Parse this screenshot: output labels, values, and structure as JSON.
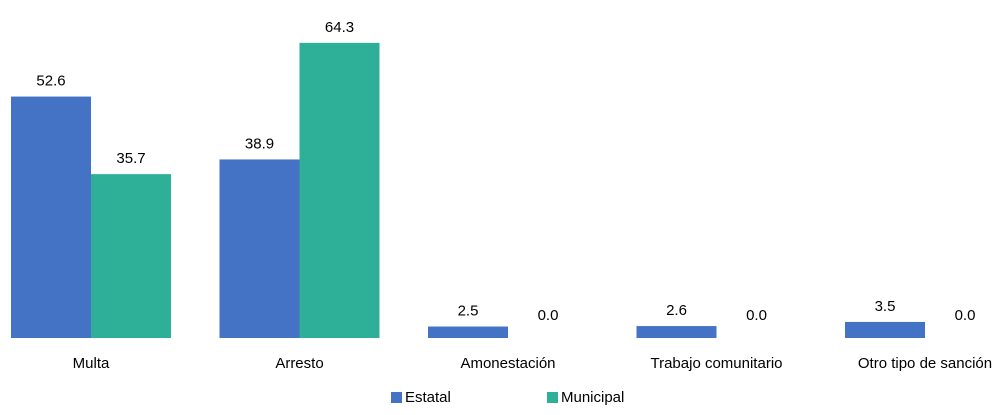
{
  "chart_data": {
    "type": "bar",
    "categories": [
      "Multa",
      "Arresto",
      "Amonestación",
      "Trabajo comunitario",
      "Otro tipo de sanción"
    ],
    "series": [
      {
        "name": "Estatal",
        "values": [
          52.6,
          38.9,
          2.5,
          2.6,
          3.5
        ],
        "labels": [
          "52.6",
          "38.9",
          "2.5",
          "2.6",
          "3.5"
        ],
        "color": "#4472C4"
      },
      {
        "name": "Municipal",
        "values": [
          35.7,
          64.3,
          0.0,
          0.0,
          0.0
        ],
        "labels": [
          "35.7",
          "64.3",
          "0.0",
          "0.0",
          "0.0"
        ],
        "color": "#2EAF98"
      }
    ],
    "ylim": [
      0,
      70
    ],
    "grid": false,
    "legend_position": "bottom-center"
  }
}
